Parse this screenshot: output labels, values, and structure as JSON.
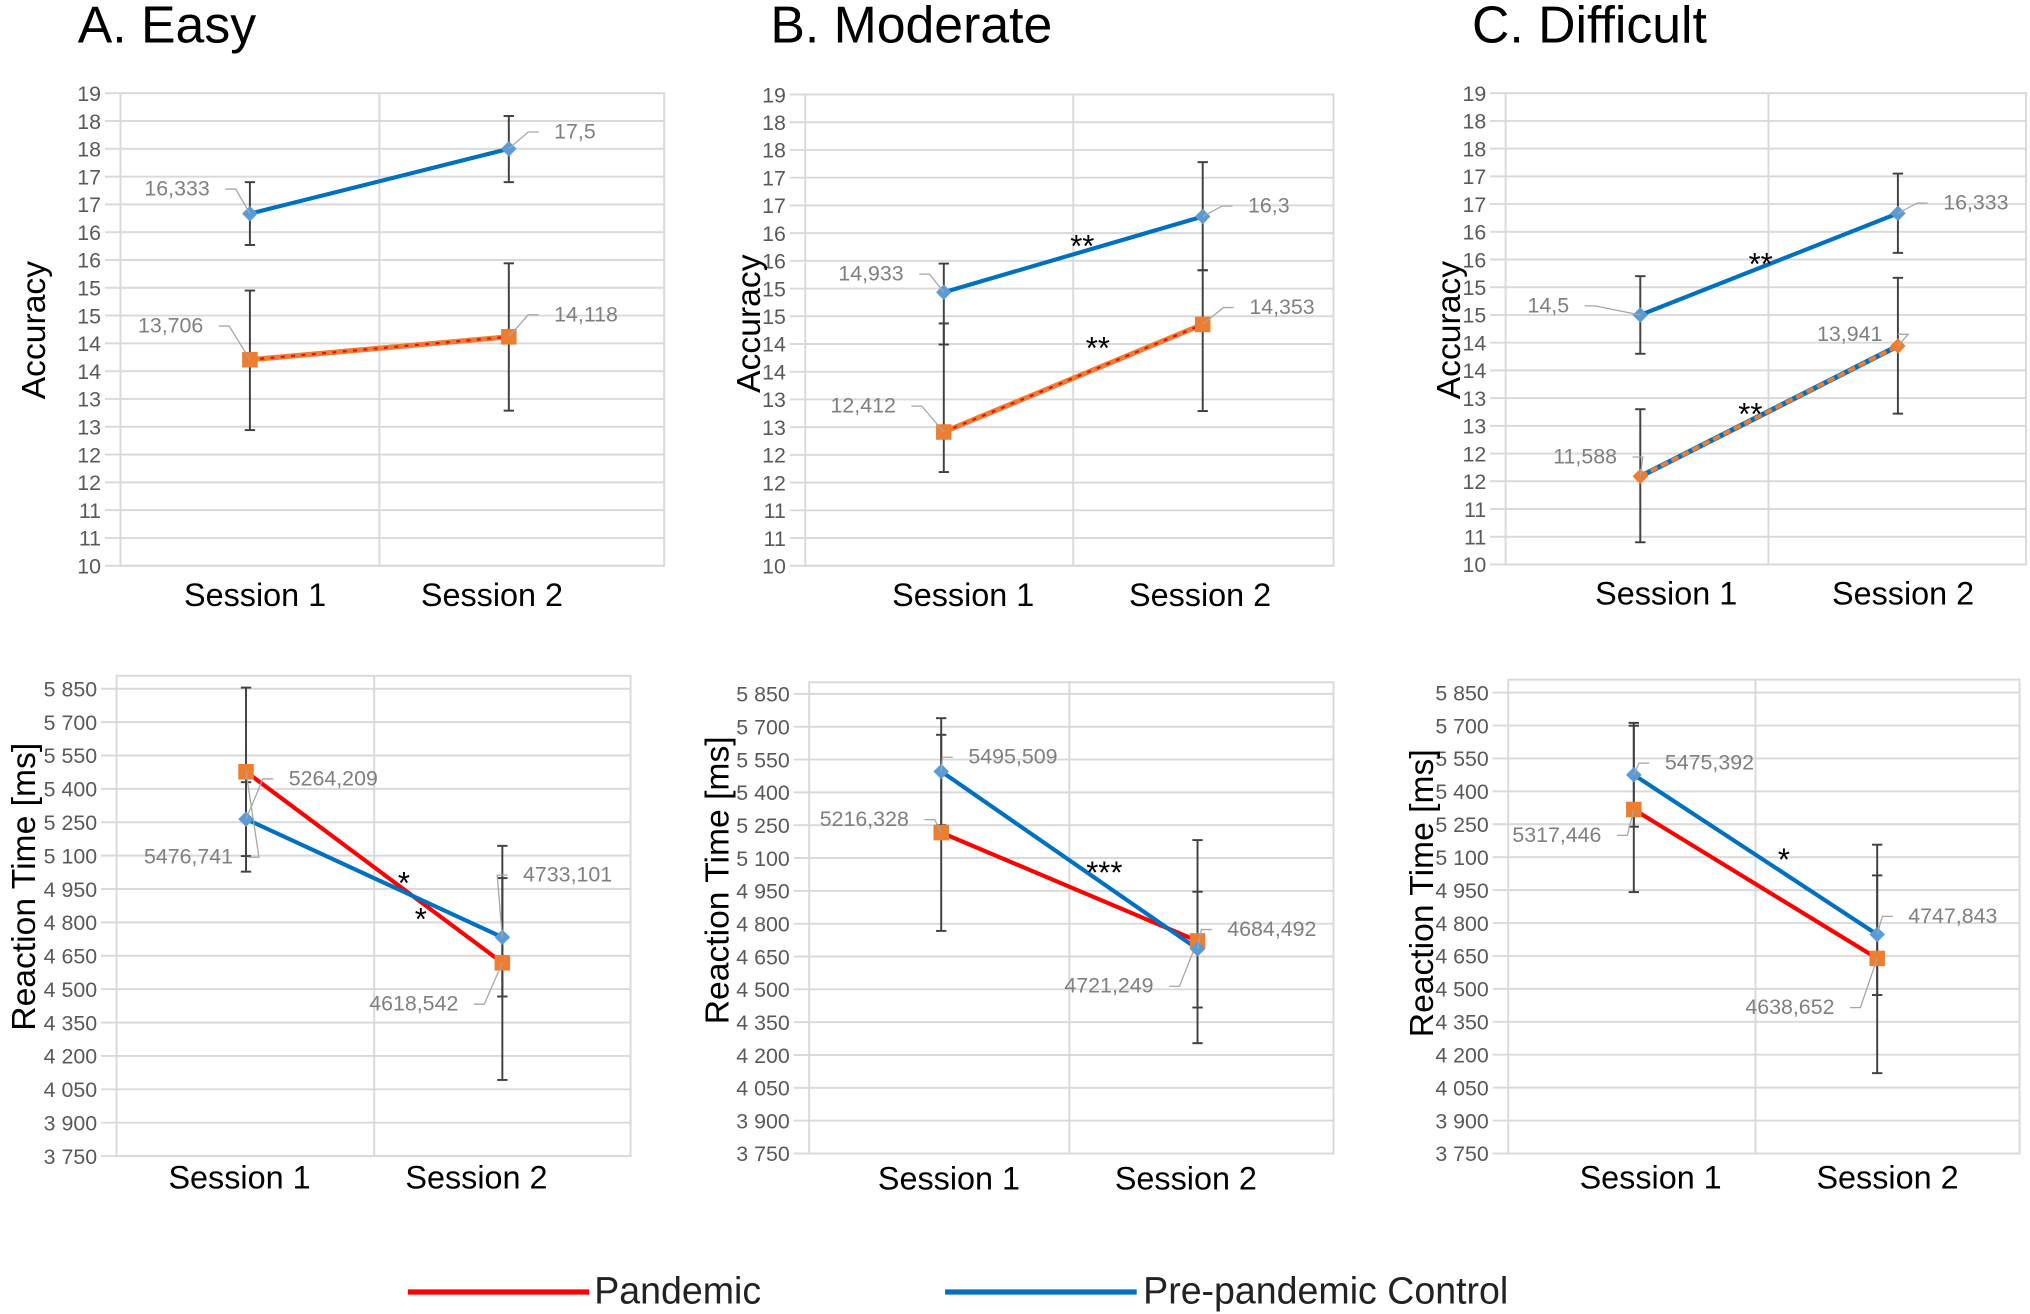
{
  "panels": [
    {
      "title": "A. Easy"
    },
    {
      "title": "B. Moderate"
    },
    {
      "title": "C. Difficult"
    }
  ],
  "legend": [
    {
      "label": "Pandemic",
      "color": "#ff0000"
    },
    {
      "label": "Pre-pandemic Control",
      "color": "#0070c0"
    }
  ],
  "colors": {
    "pandemic_line": "#ff0000",
    "pandemic_marker": "#ed7d31",
    "control_line": "#0070c0",
    "control_marker": "#5b9bd5",
    "grid": "#d9d9d9",
    "error_bar": "#404040"
  },
  "chart_data": [
    {
      "type": "line",
      "panel": "A. Easy",
      "ylabel": "Accuracy",
      "categories": [
        "Session 1",
        "Session 2"
      ],
      "ylim": [
        10,
        18.5
      ],
      "ystep": 0.5,
      "yticks": [
        "10",
        "11",
        "11",
        "12",
        "12",
        "13",
        "13",
        "14",
        "14",
        "15",
        "15",
        "16",
        "16",
        "17",
        "17",
        "18",
        "18",
        "19"
      ],
      "grid": true,
      "series": [
        {
          "name": "Pandemic",
          "values": [
            13.706,
            14.118
          ],
          "labels": [
            "13,706",
            "14,118"
          ],
          "err_high": [
            14.95,
            15.44
          ],
          "err_low": [
            12.44,
            12.79
          ],
          "marker": "square",
          "line_style": "orange-red-dotted"
        },
        {
          "name": "Pre-pandemic Control",
          "values": [
            16.333,
            17.5
          ],
          "labels": [
            "16,333",
            "17,5"
          ],
          "err_high": [
            16.9,
            18.09
          ],
          "err_low": [
            15.77,
            16.9
          ],
          "marker": "diamond",
          "line_style": "solid-blue"
        }
      ],
      "annotations": []
    },
    {
      "type": "line",
      "panel": "A. Easy",
      "ylabel": "Reaction Time [ms]",
      "categories": [
        "Session 1",
        "Session 2"
      ],
      "ylim": [
        3750,
        5850
      ],
      "ystep": 150,
      "yticks": [
        "3 750",
        "3 900",
        "4 050",
        "4 200",
        "4 350",
        "4 500",
        "4 650",
        "4 800",
        "4 950",
        "5 100",
        "5 250",
        "5 400",
        "5 550",
        "5 700",
        "5 850"
      ],
      "grid": true,
      "series": [
        {
          "name": "Pandemic",
          "values": [
            5476.741,
            4618.542
          ],
          "labels": [
            "5476,741",
            "4618,542"
          ],
          "err_high": [
            5855,
            5144
          ],
          "err_low": [
            5028,
            4092
          ],
          "marker": "square",
          "line_style": "solid-red"
        },
        {
          "name": "Pre-pandemic Control",
          "values": [
            5264.209,
            4733.101
          ],
          "labels": [
            "5264,209",
            "4733,101"
          ],
          "err_high": [
            5430,
            4999
          ],
          "err_low": [
            5098,
            4467
          ],
          "marker": "diamond",
          "line_style": "solid-blue"
        }
      ],
      "annotations": [
        {
          "text": "*"
        },
        {
          "text": "*"
        }
      ]
    },
    {
      "type": "line",
      "panel": "B. Moderate",
      "ylabel": "Accuracy",
      "categories": [
        "Session 1",
        "Session 2"
      ],
      "ylim": [
        10,
        18.5
      ],
      "ystep": 0.5,
      "yticks": [
        "10",
        "11",
        "11",
        "12",
        "12",
        "13",
        "13",
        "14",
        "14",
        "15",
        "15",
        "16",
        "16",
        "17",
        "17",
        "18",
        "18",
        "19"
      ],
      "grid": true,
      "series": [
        {
          "name": "Pandemic",
          "values": [
            12.412,
            14.353
          ],
          "labels": [
            "12,412",
            "14,353"
          ],
          "err_high": [
            14.37,
            15.33
          ],
          "err_low": [
            11.69,
            12.79
          ],
          "marker": "square",
          "line_style": "orange-red-dotted"
        },
        {
          "name": "Pre-pandemic Control",
          "values": [
            14.933,
            16.3
          ],
          "labels": [
            "14,933",
            "16,3"
          ],
          "err_high": [
            15.45,
            17.28
          ],
          "err_low": [
            13.99,
            15.33
          ],
          "marker": "diamond",
          "line_style": "solid-blue"
        }
      ],
      "annotations": [
        {
          "text": "**"
        },
        {
          "text": "**"
        }
      ]
    },
    {
      "type": "line",
      "panel": "B. Moderate",
      "ylabel": "Reaction Time [ms]",
      "categories": [
        "Session 1",
        "Session 2"
      ],
      "ylim": [
        3750,
        5850
      ],
      "ystep": 150,
      "yticks": [
        "3 750",
        "3 900",
        "4 050",
        "4 200",
        "4 350",
        "4 500",
        "4 650",
        "4 800",
        "4 950",
        "5 100",
        "5 250",
        "5 400",
        "5 550",
        "5 700",
        "5 850"
      ],
      "grid": true,
      "series": [
        {
          "name": "Pandemic",
          "values": [
            5216.328,
            4721.249
          ],
          "labels": [
            "5216,328",
            "4721,249"
          ],
          "err_high": [
            5663,
            5182
          ],
          "err_low": [
            5250,
            4254
          ],
          "marker": "square",
          "line_style": "solid-red"
        },
        {
          "name": "Pre-pandemic Control",
          "values": [
            5495.509,
            4684.492
          ],
          "labels": [
            "5495,509",
            "4684,492"
          ],
          "err_high": [
            5739,
            4946
          ],
          "err_low": [
            4767,
            4417
          ],
          "marker": "diamond",
          "line_style": "solid-blue"
        }
      ],
      "annotations": [
        {
          "text": "***"
        }
      ]
    },
    {
      "type": "line",
      "panel": "C. Difficult",
      "ylabel": "Accuracy",
      "categories": [
        "Session 1",
        "Session 2"
      ],
      "ylim": [
        10,
        18.5
      ],
      "ystep": 0.5,
      "yticks": [
        "10",
        "11",
        "11",
        "12",
        "12",
        "13",
        "13",
        "14",
        "14",
        "15",
        "15",
        "16",
        "16",
        "17",
        "17",
        "18",
        "18",
        "19"
      ],
      "grid": true,
      "series": [
        {
          "name": "Pandemic",
          "values": [
            11.588,
            13.941
          ],
          "labels": [
            "11,588",
            "13,941"
          ],
          "err_high": [
            12.8,
            15.17
          ],
          "err_low": [
            10.4,
            12.72
          ],
          "marker": "diamond",
          "line_style": "orange-blue-dashed"
        },
        {
          "name": "Pre-pandemic Control",
          "values": [
            14.5,
            16.333
          ],
          "labels": [
            "14,5",
            "16,333"
          ],
          "err_high": [
            15.2,
            17.05
          ],
          "err_low": [
            13.8,
            15.62
          ],
          "marker": "diamond",
          "line_style": "solid-blue"
        }
      ],
      "annotations": [
        {
          "text": "**"
        },
        {
          "text": "**"
        }
      ]
    },
    {
      "type": "line",
      "panel": "C. Difficult",
      "ylabel": "Reaction Time [ms]",
      "categories": [
        "Session 1",
        "Session 2"
      ],
      "ylim": [
        3750,
        5850
      ],
      "ystep": 150,
      "yticks": [
        "3 750",
        "3 900",
        "4 050",
        "4 200",
        "4 350",
        "4 500",
        "4 650",
        "4 800",
        "4 950",
        "5 100",
        "5 250",
        "5 400",
        "5 550",
        "5 700",
        "5 850"
      ],
      "grid": true,
      "series": [
        {
          "name": "Pandemic",
          "values": [
            5317.446,
            4638.652
          ],
          "labels": [
            "5317,446",
            "4638,652"
          ],
          "err_high": [
            5699,
            5157
          ],
          "err_low": [
            5239,
            4116
          ],
          "marker": "square",
          "line_style": "solid-red"
        },
        {
          "name": "Pre-pandemic Control",
          "values": [
            5475.392,
            4747.843
          ],
          "labels": [
            "5475,392",
            "4747,843"
          ],
          "err_high": [
            5712,
            5017
          ],
          "err_low": [
            4941,
            4472
          ],
          "marker": "diamond",
          "line_style": "solid-blue"
        }
      ],
      "annotations": [
        {
          "text": "*"
        }
      ]
    }
  ]
}
